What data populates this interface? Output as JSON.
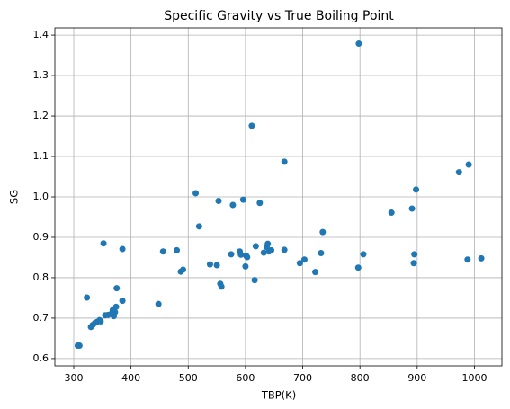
{
  "chart_data": {
    "type": "scatter",
    "title": "Specific Gravity vs True Boiling Point",
    "x_label": "TBP(K)",
    "y_label": "SG",
    "color": "#1f77b4",
    "grid": true,
    "xlim": [
      267,
      1048
    ],
    "ylim": [
      0.582,
      1.418
    ],
    "xticks": [
      300,
      400,
      500,
      600,
      700,
      800,
      900,
      1000
    ],
    "yticks": [
      0.6,
      0.7,
      0.8,
      0.9,
      {
        "value": 1,
        "label": "1.0"
      },
      1.1,
      1.2,
      1.3,
      1.4
    ],
    "x": [
      307,
      310,
      323,
      330,
      333,
      337,
      340,
      345,
      347,
      352,
      355,
      360,
      365,
      368,
      370,
      372,
      374,
      375,
      385,
      385,
      448,
      456,
      480,
      487,
      491,
      513,
      519,
      538,
      550,
      553,
      556,
      558,
      575,
      578,
      590,
      592,
      596,
      600,
      601,
      603,
      611,
      616,
      618,
      625,
      632,
      637,
      639,
      641,
      645,
      668,
      668,
      695,
      703,
      722,
      732,
      735,
      797,
      798,
      806,
      855,
      891,
      894,
      895,
      898,
      973,
      988,
      990,
      1012
    ],
    "values": [
      0.632,
      0.632,
      0.751,
      0.678,
      0.683,
      0.688,
      0.69,
      0.695,
      0.692,
      0.885,
      0.707,
      0.708,
      0.71,
      0.72,
      0.705,
      0.715,
      0.728,
      0.774,
      0.743,
      0.871,
      0.735,
      0.865,
      0.868,
      0.815,
      0.82,
      1.009,
      0.927,
      0.833,
      0.831,
      0.99,
      0.785,
      0.778,
      0.858,
      0.98,
      0.865,
      0.857,
      0.993,
      0.828,
      0.855,
      0.851,
      1.176,
      0.794,
      0.878,
      0.985,
      0.862,
      0.876,
      0.884,
      0.865,
      0.868,
      1.087,
      0.869,
      0.836,
      0.845,
      0.814,
      0.861,
      0.913,
      0.825,
      1.379,
      0.858,
      0.961,
      0.971,
      0.836,
      0.858,
      1.018,
      1.061,
      0.845,
      1.08,
      0.848
    ]
  }
}
